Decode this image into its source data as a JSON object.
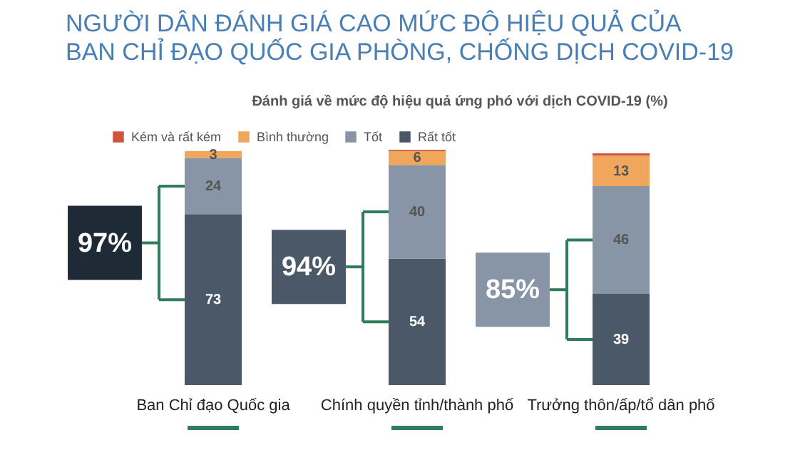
{
  "chart_data": {
    "type": "bar",
    "stacked": true,
    "title": "NGƯỜI DÂN ĐÁNH GIÁ CAO MỨC ĐỘ HIỆU QUẢ CỦA BAN CHỈ ĐẠO QUỐC GIA PHÒNG, CHỐNG DỊCH COVID-19",
    "subtitle": "Đánh giá về mức độ hiệu quả ứng phó với dịch COVID-19 (%)",
    "categories": [
      "Ban Chỉ đạo Quốc gia",
      "Chính quyền tỉnh/thành phố",
      "Trưởng thôn/ấp/tổ dân phố"
    ],
    "legend": "top",
    "series": [
      {
        "name": "Rất tốt",
        "color": "#4a5868",
        "values": [
          73,
          54,
          39
        ],
        "value_labels": [
          "73",
          "54",
          "39"
        ]
      },
      {
        "name": "Tốt",
        "color": "#8795a6",
        "values": [
          24,
          40,
          46
        ],
        "value_labels": [
          "24",
          "40",
          "46"
        ]
      },
      {
        "name": "Bình thường",
        "color": "#f0a75c",
        "values": [
          3,
          6,
          13
        ],
        "value_labels": [
          "3",
          "6",
          "13"
        ]
      },
      {
        "name": "Kém và rất kém",
        "color": "#cc5540",
        "values": [
          0,
          0.5,
          1
        ],
        "value_labels": [
          null,
          null,
          null
        ]
      }
    ],
    "annotations": [
      "97%",
      "94%",
      "85%"
    ]
  }
}
